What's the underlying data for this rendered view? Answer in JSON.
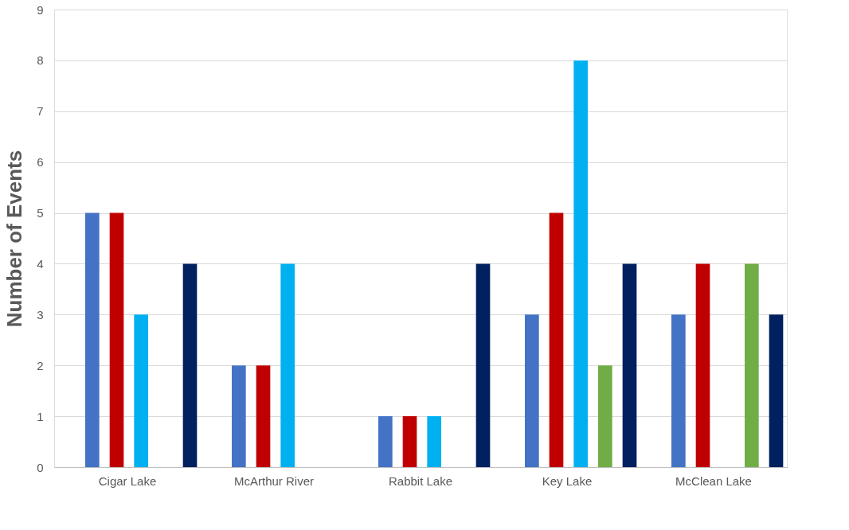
{
  "chart_data": {
    "type": "bar",
    "ylabel": "Number of Events",
    "categories": [
      "Cigar Lake",
      "McArthur River",
      "Rabbit Lake",
      "Key Lake",
      "McClean Lake"
    ],
    "series": [
      {
        "color": "#4472c4",
        "values": [
          5,
          2,
          1,
          3,
          3
        ]
      },
      {
        "color": "#c00000",
        "values": [
          5,
          2,
          1,
          5,
          4
        ]
      },
      {
        "color": "#00b0f0",
        "values": [
          3,
          4,
          1,
          8,
          null
        ]
      },
      {
        "color": "#70ad47",
        "values": [
          null,
          null,
          null,
          2,
          4
        ]
      },
      {
        "color": "#002060",
        "values": [
          4,
          null,
          4,
          4,
          3
        ]
      }
    ],
    "ylim": [
      0,
      9
    ],
    "yticks": [
      0,
      1,
      2,
      3,
      4,
      5,
      6,
      7,
      8,
      9
    ],
    "grid": "y",
    "legend": false
  }
}
